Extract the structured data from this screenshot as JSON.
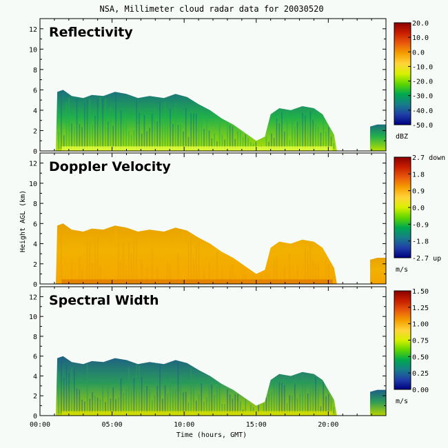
{
  "figure": {
    "title": "NSA, Millimeter cloud radar data for 20030520",
    "xlabel": "Time (hours, GMT)",
    "ylabel": "Height AGL (km)",
    "background": "#f7fbf7"
  },
  "chart_data": [
    {
      "type": "heatmap",
      "panel_label": "Reflectivity",
      "x_ticks": [
        "00:00",
        "05:00",
        "10:00",
        "15:00",
        "20:00"
      ],
      "x_tick_values": [
        0,
        5,
        10,
        15,
        20
      ],
      "y_ticks": [
        "0",
        "2",
        "4",
        "6",
        "8",
        "10",
        "12"
      ],
      "y_tick_values": [
        0,
        2,
        4,
        6,
        8,
        10,
        12
      ],
      "xlim": [
        0,
        24
      ],
      "ylim": [
        0,
        13
      ],
      "colorbar": {
        "ticks": [
          "20.0",
          "10.0",
          "0.0",
          "-10.0",
          "-20.0",
          "-30.0",
          "-40.0",
          "-50.0"
        ],
        "range": [
          -50,
          20
        ],
        "units": "dBZ",
        "colors": [
          "#8b0000",
          "#c81e00",
          "#e8590c",
          "#f59f00",
          "#ffd43b",
          "#d8f000",
          "#5fd600",
          "#00a84f",
          "#177e89",
          "#1f3fa8",
          "#000080"
        ]
      }
    },
    {
      "type": "heatmap",
      "panel_label": "Doppler Velocity",
      "x_ticks": [
        "00:00",
        "05:00",
        "10:00",
        "15:00",
        "20:00"
      ],
      "x_tick_values": [
        0,
        5,
        10,
        15,
        20
      ],
      "y_ticks": [
        "0",
        "2",
        "4",
        "6",
        "8",
        "10",
        "12"
      ],
      "y_tick_values": [
        0,
        2,
        4,
        6,
        8,
        10,
        12
      ],
      "xlim": [
        0,
        24
      ],
      "ylim": [
        0,
        13
      ],
      "colorbar": {
        "ticks": [
          "2.7 down",
          "1.8",
          "0.9",
          "0.0",
          "-0.9",
          "-1.8",
          "-2.7 up"
        ],
        "range": [
          -2.7,
          2.7
        ],
        "units": "m/s",
        "colors": [
          "#8b0000",
          "#c81e00",
          "#e8590c",
          "#f59f00",
          "#ffd43b",
          "#d8f000",
          "#5fd600",
          "#00a84f",
          "#177e89",
          "#1f3fa8",
          "#000080"
        ]
      }
    },
    {
      "type": "heatmap",
      "panel_label": "Spectral Width",
      "x_ticks": [
        "00:00",
        "05:00",
        "10:00",
        "15:00",
        "20:00"
      ],
      "x_tick_values": [
        0,
        5,
        10,
        15,
        20
      ],
      "y_ticks": [
        "0",
        "2",
        "4",
        "6",
        "8",
        "10",
        "12"
      ],
      "y_tick_values": [
        0,
        2,
        4,
        6,
        8,
        10,
        12
      ],
      "xlim": [
        0,
        24
      ],
      "ylim": [
        0,
        13
      ],
      "colorbar": {
        "ticks": [
          "1.50",
          "1.25",
          "1.00",
          "0.75",
          "0.50",
          "0.25",
          "0.00"
        ],
        "range": [
          0,
          1.5
        ],
        "units": "m/s",
        "colors": [
          "#8b0000",
          "#c81e00",
          "#e8590c",
          "#f59f00",
          "#ffd43b",
          "#d8f000",
          "#5fd600",
          "#00a84f",
          "#177e89",
          "#1f3fa8",
          "#000080"
        ]
      }
    }
  ]
}
